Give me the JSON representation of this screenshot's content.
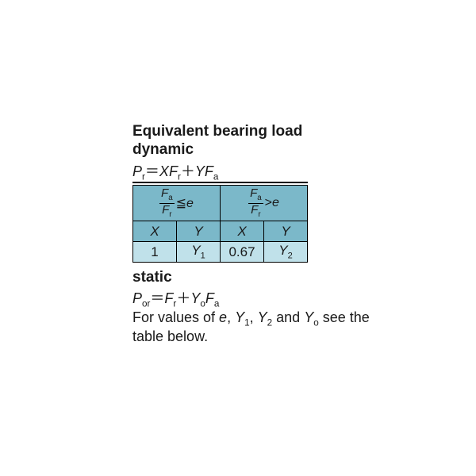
{
  "heading": {
    "title": "Equivalent bearing load",
    "dynamic_label": "dynamic",
    "static_label": "static"
  },
  "dynamic_formula": {
    "lhs_var": "P",
    "lhs_sub": "r",
    "eq": "＝",
    "t1_coef": "X",
    "t1_var": "F",
    "t1_sub": "r",
    "plus": "＋",
    "t2_coef": "Y",
    "t2_var": "F",
    "t2_sub": "a"
  },
  "table": {
    "frac_num_var": "F",
    "frac_num_sub": "a",
    "frac_den_var": "F",
    "frac_den_sub": "r",
    "le": "≦",
    "gt": ">",
    "evar": "e",
    "X": "X",
    "Y": "Y",
    "v_x1": "1",
    "v_y1_var": "Y",
    "v_y1_sub": "1",
    "v_x2": "0.67",
    "v_y2_var": "Y",
    "v_y2_sub": "2",
    "colors": {
      "header_bg": "#7bb8c9",
      "value_bg": "#c0e1ea",
      "border": "#000000"
    }
  },
  "static_formula": {
    "lhs_var": "P",
    "lhs_sub": "or",
    "eq": "＝",
    "t1_var": "F",
    "t1_sub": "r",
    "plus": "＋",
    "t2_coef_var": "Y",
    "t2_coef_sub": "o",
    "t2_var": "F",
    "t2_sub": "a"
  },
  "note": {
    "pre": "For values of ",
    "v1": "e",
    "c1": ", ",
    "v2_var": "Y",
    "v2_sub": "1",
    "c2": ", ",
    "v3_var": "Y",
    "v3_sub": "2",
    "c3": " and ",
    "v4_var": "Y",
    "v4_sub": "o",
    "post": " see the table below."
  }
}
